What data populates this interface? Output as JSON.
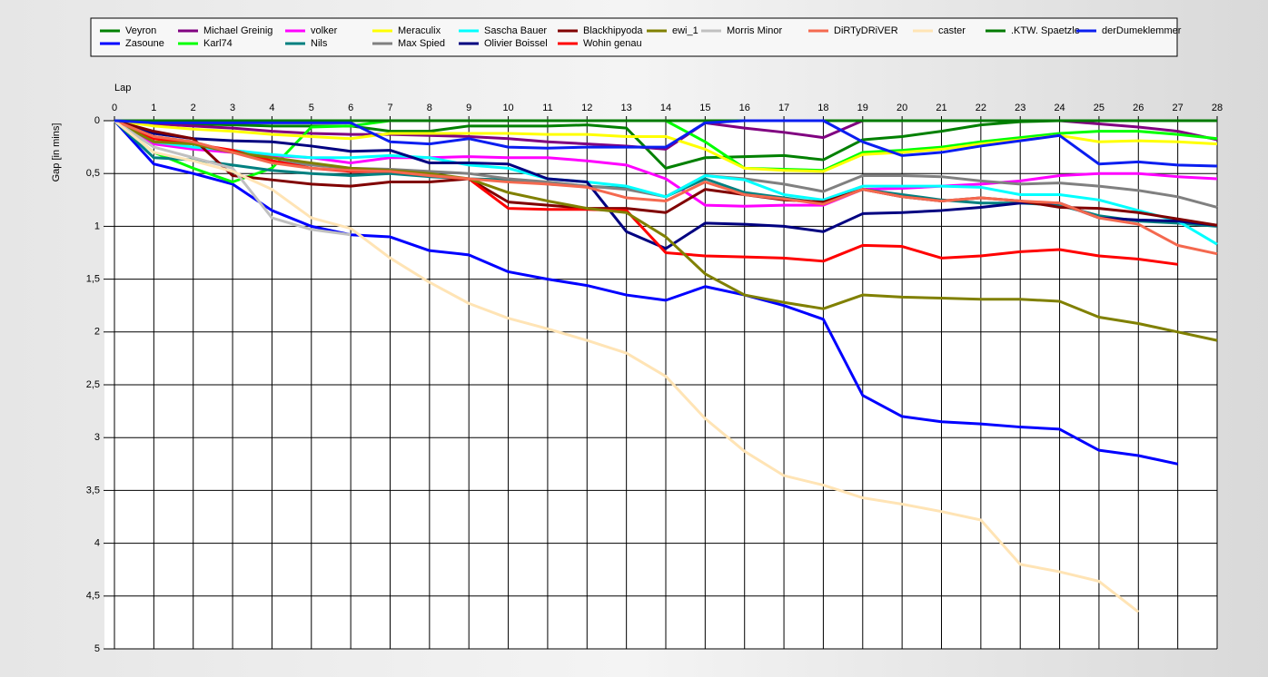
{
  "chart_data": {
    "type": "line",
    "x_label": "Lap",
    "y_label": "Gap [in mins]",
    "x": [
      0,
      1,
      2,
      3,
      4,
      5,
      6,
      7,
      8,
      9,
      10,
      11,
      12,
      13,
      14,
      15,
      16,
      17,
      18,
      19,
      20,
      21,
      22,
      23,
      24,
      25,
      26,
      27,
      28
    ],
    "xlim": [
      0,
      28
    ],
    "xticks": [
      0,
      1,
      2,
      3,
      4,
      5,
      6,
      7,
      8,
      9,
      10,
      11,
      12,
      13,
      14,
      15,
      16,
      17,
      18,
      19,
      20,
      21,
      22,
      23,
      24,
      25,
      26,
      27,
      28
    ],
    "ylim": [
      0,
      5
    ],
    "y_inverted": true,
    "yticks": [
      0,
      {
        "value": 0.5,
        "label": "0,5"
      },
      1,
      {
        "value": 1.5,
        "label": "1,5"
      },
      2,
      {
        "value": 2.5,
        "label": "2,5"
      },
      3,
      {
        "value": 3.5,
        "label": "3,5"
      },
      4,
      {
        "value": 4.5,
        "label": "4,5"
      },
      5
    ],
    "grid": true,
    "legend": "top",
    "series": [
      {
        "name": "Veyron",
        "color": "#008000",
        "values": [
          0,
          0.02,
          0.03,
          0.04,
          0.05,
          0.05,
          0.05,
          0.1,
          0.1,
          0.05,
          0.05,
          0.05,
          0.04,
          0.07,
          0.45,
          0.35,
          0.34,
          0.33,
          0.37,
          0.18,
          0.15,
          0.1,
          0.04,
          0.01,
          0,
          0,
          0,
          0,
          0
        ]
      },
      {
        "name": "Zasoune",
        "color": "#0000ff",
        "values": [
          0,
          0.41,
          0.5,
          0.6,
          0.85,
          1.0,
          1.08,
          1.1,
          1.23,
          1.27,
          1.43,
          1.5,
          1.56,
          1.65,
          1.7,
          1.57,
          1.65,
          1.75,
          1.88,
          2.6,
          2.8,
          2.85,
          2.87,
          2.9,
          2.92,
          3.12,
          3.17,
          3.25,
          null
        ]
      },
      {
        "name": "Michael Greinig",
        "color": "#800080",
        "values": [
          0,
          0.03,
          0.05,
          0.07,
          0.1,
          0.12,
          0.13,
          0.13,
          0.14,
          0.15,
          0.17,
          0.2,
          0.22,
          0.24,
          0.27,
          0.02,
          0.07,
          0.11,
          0.16,
          0,
          0,
          0,
          0,
          0,
          0,
          0.03,
          0.06,
          0.1,
          0.18
        ]
      },
      {
        "name": "Karl74",
        "color": "#00ff00",
        "values": [
          0,
          0.3,
          0.45,
          0.58,
          0.45,
          0.06,
          0.05,
          0,
          0,
          0,
          0,
          0,
          0,
          0,
          0,
          0.2,
          0.45,
          0.46,
          0.47,
          0.3,
          0.28,
          0.25,
          0.2,
          0.16,
          0.12,
          0.1,
          0.1,
          0.13,
          0.17
        ]
      },
      {
        "name": "volker",
        "color": "#ff00ff",
        "values": [
          0,
          0.22,
          0.27,
          0.3,
          0.33,
          0.35,
          0.4,
          0.35,
          0.35,
          0.34,
          0.35,
          0.35,
          0.38,
          0.42,
          0.55,
          0.8,
          0.81,
          0.8,
          0.8,
          0.65,
          0.64,
          0.62,
          0.6,
          0.57,
          0.52,
          0.5,
          0.5,
          0.53,
          0.55
        ]
      },
      {
        "name": "Nils",
        "color": "#008080",
        "values": [
          0,
          0.35,
          0.37,
          0.42,
          0.47,
          0.5,
          0.52,
          0.5,
          0.53,
          0.55,
          0.56,
          0.6,
          0.62,
          0.64,
          0.72,
          0.55,
          0.68,
          0.73,
          0.78,
          0.65,
          0.7,
          0.75,
          0.78,
          0.78,
          0.8,
          0.9,
          0.95,
          0.97,
          1.0
        ]
      },
      {
        "name": "Meraculix",
        "color": "#ffff00",
        "values": [
          0,
          0.05,
          0.08,
          0.1,
          0.13,
          0.15,
          0.17,
          0.12,
          0.12,
          0.12,
          0.12,
          0.13,
          0.13,
          0.15,
          0.15,
          0.27,
          0.45,
          0.47,
          0.48,
          0.32,
          0.3,
          0.27,
          0.22,
          0.18,
          0.14,
          0.2,
          0.19,
          0.2,
          0.22
        ]
      },
      {
        "name": "Max Spied",
        "color": "#808080",
        "values": [
          0,
          0.15,
          0.2,
          0.3,
          0.38,
          0.42,
          0.45,
          0.46,
          0.48,
          0.5,
          0.55,
          0.58,
          0.62,
          0.65,
          0.72,
          0.52,
          0.55,
          0.6,
          0.67,
          0.52,
          0.52,
          0.53,
          0.57,
          0.6,
          0.59,
          0.62,
          0.66,
          0.72,
          0.82
        ]
      },
      {
        "name": "Sascha Bauer",
        "color": "#00ffff",
        "values": [
          0,
          0.2,
          0.25,
          0.28,
          0.32,
          0.35,
          0.35,
          0.33,
          0.35,
          0.42,
          0.45,
          0.55,
          0.58,
          0.62,
          0.72,
          0.52,
          0.56,
          0.7,
          0.75,
          0.62,
          0.62,
          0.62,
          0.63,
          0.7,
          0.7,
          0.75,
          0.85,
          0.95,
          1.17
        ]
      },
      {
        "name": "Olivier Boissel",
        "color": "#000080",
        "values": [
          0,
          0.12,
          0.17,
          0.19,
          0.2,
          0.24,
          0.29,
          0.28,
          0.4,
          0.4,
          0.41,
          0.55,
          0.58,
          1.05,
          1.21,
          0.97,
          0.98,
          1.0,
          1.05,
          0.88,
          0.87,
          0.85,
          0.82,
          0.78,
          0.78,
          0.92,
          0.94,
          0.95,
          0.99
        ]
      },
      {
        "name": "Blackhipyoda",
        "color": "#800000",
        "values": [
          0,
          0.1,
          0.17,
          0.52,
          0.56,
          0.6,
          0.62,
          0.58,
          0.58,
          0.55,
          0.77,
          0.8,
          0.83,
          0.83,
          0.87,
          0.65,
          0.7,
          0.75,
          0.77,
          0.65,
          0.72,
          0.76,
          0.73,
          0.76,
          0.82,
          0.83,
          0.87,
          0.93,
          0.99
        ]
      },
      {
        "name": "Wohin genau",
        "color": "#ff0000",
        "values": [
          0,
          0.17,
          0.22,
          0.28,
          0.38,
          0.45,
          0.48,
          0.48,
          0.52,
          0.55,
          0.83,
          0.84,
          0.84,
          0.85,
          1.25,
          1.28,
          1.29,
          1.3,
          1.33,
          1.18,
          1.19,
          1.3,
          1.28,
          1.24,
          1.22,
          1.28,
          1.31,
          1.36,
          null
        ]
      },
      {
        "name": "ewi_1",
        "color": "#808000",
        "values": [
          0,
          0.2,
          0.22,
          0.3,
          0.35,
          0.4,
          0.45,
          0.47,
          0.5,
          0.55,
          0.68,
          0.76,
          0.83,
          0.87,
          1.1,
          1.45,
          1.65,
          1.72,
          1.78,
          1.65,
          1.67,
          1.68,
          1.69,
          1.69,
          1.71,
          1.86,
          1.92,
          2.0,
          2.08
        ]
      },
      {
        "name": "Morris Minor",
        "color": "#c0c0c0",
        "values": [
          0,
          0.25,
          0.35,
          0.45,
          0.92,
          1.03,
          1.08,
          null,
          null,
          null,
          null,
          null,
          null,
          null,
          null,
          null,
          null,
          null,
          null,
          null,
          null,
          null,
          null,
          null,
          null,
          null,
          null,
          null,
          null
        ]
      },
      {
        "name": "DiRTyDRiVER",
        "color": "#f4694f",
        "values": [
          0,
          0.15,
          0.2,
          0.3,
          0.4,
          0.45,
          0.47,
          0.48,
          0.52,
          0.55,
          0.58,
          0.6,
          0.63,
          0.73,
          0.76,
          0.58,
          0.7,
          0.74,
          0.79,
          0.65,
          0.72,
          0.76,
          0.73,
          0.76,
          0.78,
          0.92,
          0.98,
          1.18,
          1.26
        ]
      },
      {
        "name": "caster",
        "color": "#ffe4b5",
        "values": [
          0,
          0.3,
          0.38,
          0.48,
          0.65,
          0.92,
          1.02,
          1.3,
          1.53,
          1.73,
          1.87,
          1.97,
          2.08,
          2.2,
          2.42,
          2.82,
          3.13,
          3.36,
          3.45,
          3.57,
          3.63,
          3.7,
          3.78,
          4.2,
          4.27,
          4.36,
          4.65,
          null,
          null
        ]
      },
      {
        "name": ".KTW. Spaetzle",
        "color": "#007a00",
        "values": [
          0,
          0,
          0,
          0,
          0,
          0,
          0,
          0,
          0,
          0,
          0,
          0,
          0,
          0,
          0,
          0,
          0,
          0,
          0,
          0,
          0,
          0,
          0,
          0,
          0,
          0,
          0,
          0,
          0
        ]
      },
      {
        "name": "derDumeklemmer",
        "color": "#0a1ef0",
        "values": [
          0,
          0.02,
          0.02,
          0.02,
          0.02,
          0.02,
          0.02,
          0.2,
          0.22,
          0.17,
          0.25,
          0.26,
          0.25,
          0.25,
          0.25,
          0.02,
          0,
          0,
          0,
          0.2,
          0.33,
          0.3,
          0.24,
          0.19,
          0.14,
          0.41,
          0.39,
          0.42,
          0.43
        ]
      }
    ]
  }
}
